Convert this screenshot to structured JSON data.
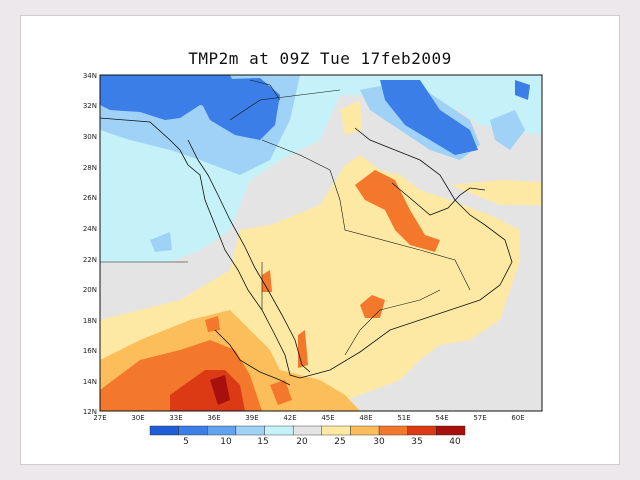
{
  "title": "TMP2m at 09Z Tue 17feb2009",
  "lat_labels": [
    "34N",
    "32N",
    "30N",
    "28N",
    "26N",
    "24N",
    "22N",
    "20N",
    "18N",
    "16N",
    "14N",
    "12N"
  ],
  "lon_labels": [
    "27E",
    "30E",
    "33E",
    "36E",
    "39E",
    "42E",
    "45E",
    "48E",
    "51E",
    "54E",
    "57E",
    "60E"
  ],
  "colorbar": {
    "colors": [
      "#1e5fd8",
      "#3b7ee8",
      "#62a3f0",
      "#9fd2f6",
      "#c4f2f8",
      "#e4e4e4",
      "#fde9a4",
      "#fcbe5b",
      "#f3782c",
      "#dc3a14",
      "#a8100e"
    ],
    "labels": [
      "5",
      "10",
      "15",
      "20",
      "25",
      "30",
      "35",
      "40"
    ]
  },
  "palette": {
    "deep_blue": "#3b7ee8",
    "light_blue": "#9fd2f6",
    "pale_cyan": "#c4f2f8",
    "gray": "#e4e4e4",
    "yellow": "#fde9a4",
    "orange": "#fcbe5b",
    "red_orange": "#f3782c",
    "red": "#dc3a14",
    "dark_red": "#a8100e"
  }
}
